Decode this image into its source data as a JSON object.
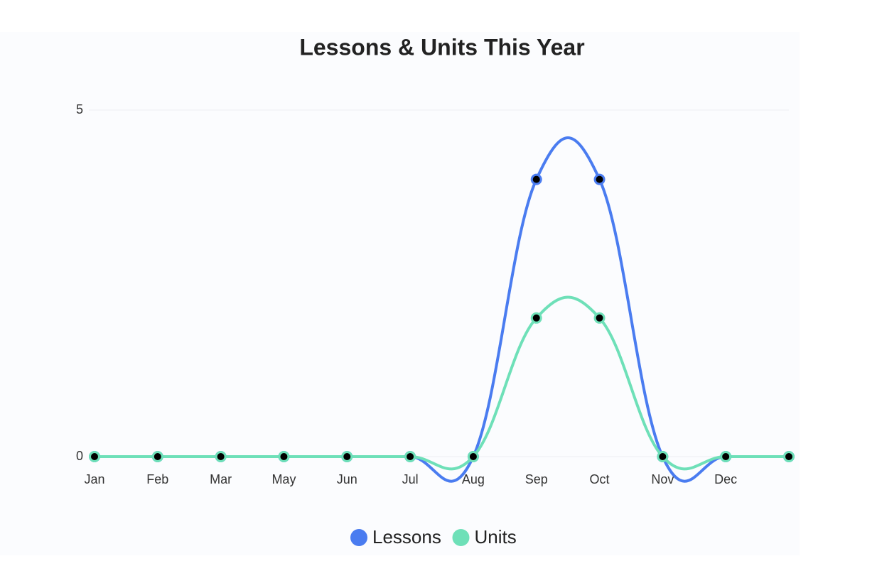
{
  "chart_data": {
    "type": "line",
    "title": "Lessons & Units This Year",
    "categories": [
      "Jan",
      "Feb",
      "Mar",
      "May",
      "Jun",
      "Jul",
      "Aug",
      "Sep",
      "Oct",
      "Nov",
      "Dec",
      null
    ],
    "series": [
      {
        "name": "Lessons",
        "color": "#4a7cf0",
        "values": [
          0,
          0,
          0,
          0,
          0,
          0,
          0,
          4,
          4,
          0,
          0,
          0
        ]
      },
      {
        "name": "Units",
        "color": "#6ee0b8",
        "values": [
          0,
          0,
          0,
          0,
          0,
          0,
          0,
          2,
          2,
          0,
          0,
          0
        ]
      }
    ],
    "ylim": [
      0,
      5
    ],
    "yticks": [
      0,
      5
    ],
    "grid": true,
    "legend": "bottom"
  }
}
